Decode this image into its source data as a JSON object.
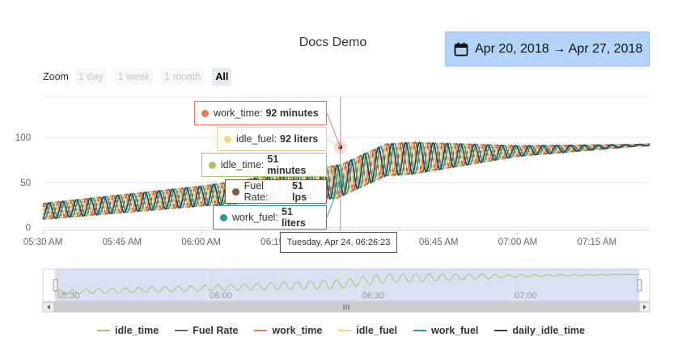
{
  "title": "Docs Demo",
  "date_range": {
    "label": "Apr 20, 2018 → Apr 27, 2018",
    "icon": "calendar-icon"
  },
  "zoom": {
    "label": "Zoom",
    "buttons": [
      "1 day",
      "1 week",
      "1 month",
      "All"
    ],
    "active": "All"
  },
  "colors": {
    "idle_time": "#9bcb6b",
    "Fuel Rate": "#7b6244",
    "work_time": "#f0725e",
    "idle_fuel": "#f5d27b",
    "work_fuel": "#2a9d8f",
    "daily_idle_time": "#3b3552"
  },
  "tooltips": [
    {
      "series": "work_time",
      "label": "work_time:",
      "value": "92 minutes"
    },
    {
      "series": "idle_fuel",
      "label": "idle_fuel:",
      "value": "92 liters"
    },
    {
      "series": "idle_time",
      "label": "idle_time:",
      "value": "51 minutes"
    },
    {
      "series": "Fuel Rate",
      "label": "Fuel Rate:",
      "value": "51 lps"
    },
    {
      "series": "work_fuel",
      "label": "work_fuel:",
      "value": "51 liters"
    }
  ],
  "x_tooltip": "Tuesday, Apr 24, 06:26:23",
  "navigator": {
    "ticks": [
      "05:30",
      "06:00",
      "06:30",
      "07:00"
    ]
  },
  "chart_data": {
    "type": "line",
    "title": "Docs Demo",
    "xlabel": "",
    "ylabel": "",
    "x_ticks": [
      "05:30 AM",
      "05:45 AM",
      "06:00 AM",
      "06:15 AM",
      "06:30 AM",
      "06:45 AM",
      "07:00 AM",
      "07:15 AM"
    ],
    "y_ticks": [
      0,
      50,
      100
    ],
    "ylim": [
      -3,
      145
    ],
    "xlim_minutes": [
      330,
      445
    ],
    "crosshair_minutes": 386.4,
    "grid": true,
    "legend_position": "bottom",
    "series": [
      {
        "name": "idle_time",
        "points": [
          [
            330,
            18
          ],
          [
            360,
            35
          ],
          [
            386,
            51
          ],
          [
            395,
            75
          ],
          [
            420,
            85
          ],
          [
            445,
            92
          ]
        ]
      },
      {
        "name": "Fuel Rate",
        "points": [
          [
            330,
            18
          ],
          [
            360,
            35
          ],
          [
            386,
            51
          ],
          [
            395,
            75
          ],
          [
            420,
            85
          ],
          [
            445,
            92
          ]
        ]
      },
      {
        "name": "work_time",
        "points": [
          [
            330,
            18
          ],
          [
            360,
            35
          ],
          [
            386,
            92
          ],
          [
            395,
            75
          ],
          [
            420,
            85
          ],
          [
            445,
            92
          ]
        ]
      },
      {
        "name": "idle_fuel",
        "points": [
          [
            330,
            18
          ],
          [
            360,
            35
          ],
          [
            386,
            92
          ],
          [
            395,
            75
          ],
          [
            420,
            85
          ],
          [
            445,
            92
          ]
        ]
      },
      {
        "name": "work_fuel",
        "points": [
          [
            330,
            18
          ],
          [
            360,
            35
          ],
          [
            386,
            51
          ],
          [
            395,
            75
          ],
          [
            420,
            85
          ],
          [
            445,
            92
          ]
        ]
      },
      {
        "name": "daily_idle_time",
        "points": [
          [
            330,
            18
          ],
          [
            360,
            35
          ],
          [
            386,
            92
          ],
          [
            395,
            75
          ],
          [
            420,
            85
          ],
          [
            445,
            92
          ]
        ]
      }
    ]
  }
}
